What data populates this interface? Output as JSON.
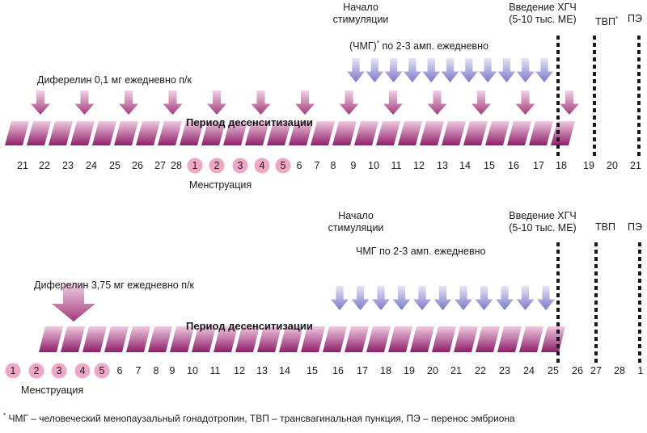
{
  "colors": {
    "magenta": "#8e1f6a",
    "magenta_light": "#e7b6d2",
    "lavender": "#7c78c8",
    "lavender_light": "#d7d5f2",
    "pink_circle": "#f0a7c6",
    "marker": "#1a1a1a"
  },
  "top": {
    "stim_start": "Начало\nстимуляции",
    "hcg": "Введение ХГЧ\n(5-10 тыс. МЕ)",
    "tvp": "ТВП",
    "tvp_mark": "*",
    "pe": "ПЭ",
    "hmg_line_pre": "(ЧМГ)",
    "hmg_star": "*",
    "hmg_line_post": " по 2-3 амп. ежедневно",
    "drug": "Диферелин 0,1 мг ежедневно п/к",
    "period": "Период десенситизации",
    "days": [
      "21",
      "22",
      "23",
      "24",
      "25",
      "26",
      "27",
      "28",
      "1",
      "2",
      "3",
      "4",
      "5",
      "6",
      "7",
      "8",
      "9",
      "10",
      "11",
      "12",
      "13",
      "14",
      "15",
      "16",
      "17",
      "18",
      "19",
      "20",
      "21"
    ],
    "circled": [
      8,
      9,
      10,
      11,
      12
    ],
    "menstruation": "Менструация",
    "downarrows_purple": 13,
    "downarrows_lavender": 11
  },
  "bottom": {
    "stim_start": "Начало\nстимуляции",
    "hcg": "Введение ХГЧ\n(5-10 тыс. МЕ)",
    "tvp": "ТВП",
    "pe": "ПЭ",
    "hmg_line": "ЧМГ по 2-3 амп. ежедневно",
    "drug": "Диферелин 3,75 мг ежедневно п/к",
    "period": "Период десенситизации",
    "days": [
      "1",
      "2",
      "3",
      "4",
      "5",
      "6",
      "7",
      "8",
      "9",
      "10",
      "11",
      "12",
      "13",
      "14",
      "15",
      "16",
      "17",
      "18",
      "19",
      "20",
      "21",
      "22",
      "23",
      "24",
      "25",
      "26",
      "27",
      "28",
      "1"
    ],
    "circled": [
      0,
      1,
      2,
      3,
      4
    ],
    "menstruation": "Менструация",
    "downarrows_lavender": 11
  },
  "footnote": {
    "star": "*",
    "text": " ЧМГ – человеческий менопаузальный гонадотропин, ТВП – трансвагинальная пункция, ПЭ – перенос эмбриона"
  }
}
